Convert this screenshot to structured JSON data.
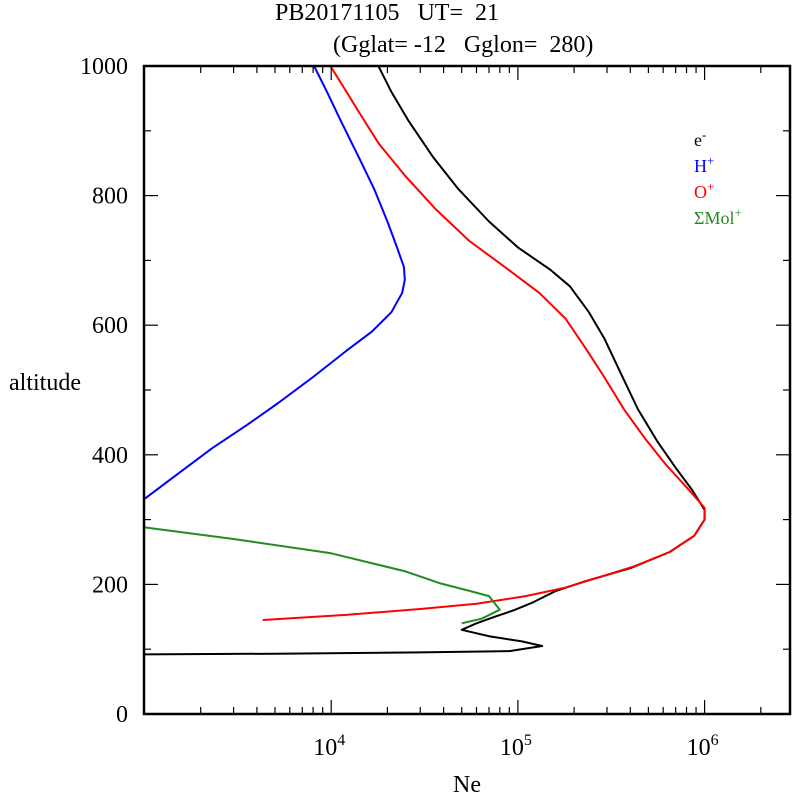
{
  "chart_data": {
    "type": "line",
    "title_line1": "PB20171105   UT=  21",
    "title_line2": "(Gglat= -12   Gglon=  280)",
    "xlabel": "Ne",
    "ylabel": "altitude",
    "xscale": "log",
    "xlim": [
      1000,
      3000000
    ],
    "ylim": [
      0,
      1000
    ],
    "xticks": [
      {
        "value": 10000,
        "base": "10",
        "exp": "4"
      },
      {
        "value": 100000,
        "base": "10",
        "exp": "5"
      },
      {
        "value": 1000000,
        "base": "10",
        "exp": "6"
      }
    ],
    "yticks": [
      0,
      200,
      400,
      600,
      800,
      1000
    ],
    "yticks_labels": [
      "0",
      "200",
      "400",
      "600",
      "800",
      "1000"
    ],
    "legend_position": "top-right",
    "series": [
      {
        "name": "e-",
        "label_base": "e",
        "label_sup": "-",
        "color": "#000000",
        "points": [
          [
            17900,
            1000
          ],
          [
            21000,
            960
          ],
          [
            26000,
            915
          ],
          [
            35000,
            860
          ],
          [
            48000,
            810
          ],
          [
            70000,
            760
          ],
          [
            100000,
            720
          ],
          [
            150000,
            685
          ],
          [
            190000,
            660
          ],
          [
            240000,
            620
          ],
          [
            290000,
            580
          ],
          [
            350000,
            530
          ],
          [
            440000,
            470
          ],
          [
            560000,
            420
          ],
          [
            700000,
            380
          ],
          [
            860000,
            345
          ],
          [
            1000000,
            315
          ],
          [
            1000000,
            300
          ],
          [
            880000,
            275
          ],
          [
            650000,
            250
          ],
          [
            400000,
            225
          ],
          [
            230000,
            205
          ],
          [
            160000,
            190
          ],
          [
            120000,
            172
          ],
          [
            95000,
            160
          ],
          [
            75000,
            150
          ],
          [
            60000,
            140
          ],
          [
            50000,
            130
          ],
          [
            70000,
            120
          ],
          [
            105000,
            112
          ],
          [
            135000,
            105
          ],
          [
            90000,
            97
          ],
          [
            30000,
            95
          ],
          [
            5000,
            93
          ],
          [
            1000,
            92
          ]
        ]
      },
      {
        "name": "H+",
        "label_base": "H",
        "label_sup": "+",
        "color": "#0000ff",
        "points": [
          [
            8100,
            1000
          ],
          [
            9500,
            960
          ],
          [
            11500,
            910
          ],
          [
            14000,
            860
          ],
          [
            17000,
            810
          ],
          [
            20000,
            760
          ],
          [
            22500,
            720
          ],
          [
            24500,
            690
          ],
          [
            24800,
            670
          ],
          [
            24000,
            650
          ],
          [
            21000,
            620
          ],
          [
            16500,
            590
          ],
          [
            12000,
            560
          ],
          [
            8000,
            520
          ],
          [
            5200,
            480
          ],
          [
            3500,
            445
          ],
          [
            2300,
            410
          ],
          [
            1500,
            370
          ],
          [
            1000,
            332
          ]
        ]
      },
      {
        "name": "O+",
        "label_base": "O",
        "label_sup": "+",
        "color": "#ff0000",
        "points": [
          [
            9900,
            1000
          ],
          [
            11500,
            970
          ],
          [
            14000,
            930
          ],
          [
            18000,
            880
          ],
          [
            25000,
            830
          ],
          [
            36000,
            780
          ],
          [
            55000,
            730
          ],
          [
            85000,
            690
          ],
          [
            130000,
            650
          ],
          [
            180000,
            610
          ],
          [
            230000,
            565
          ],
          [
            290000,
            520
          ],
          [
            370000,
            470
          ],
          [
            480000,
            425
          ],
          [
            620000,
            385
          ],
          [
            800000,
            350
          ],
          [
            1000000,
            318
          ],
          [
            1000000,
            300
          ],
          [
            880000,
            275
          ],
          [
            650000,
            250
          ],
          [
            420000,
            228
          ],
          [
            280000,
            212
          ],
          [
            180000,
            195
          ],
          [
            110000,
            182
          ],
          [
            60000,
            170
          ],
          [
            30000,
            162
          ],
          [
            12000,
            153
          ],
          [
            4300,
            145
          ]
        ]
      },
      {
        "name": "SigmaMol+",
        "label_base": "ΣMol",
        "label_sup": "+",
        "color": "#228b22",
        "points": [
          [
            1000,
            288
          ],
          [
            3000,
            270
          ],
          [
            10000,
            248
          ],
          [
            25000,
            220
          ],
          [
            38000,
            202
          ],
          [
            55000,
            190
          ],
          [
            70000,
            182
          ],
          [
            80000,
            161
          ],
          [
            64000,
            147
          ],
          [
            50000,
            140
          ]
        ]
      }
    ]
  }
}
